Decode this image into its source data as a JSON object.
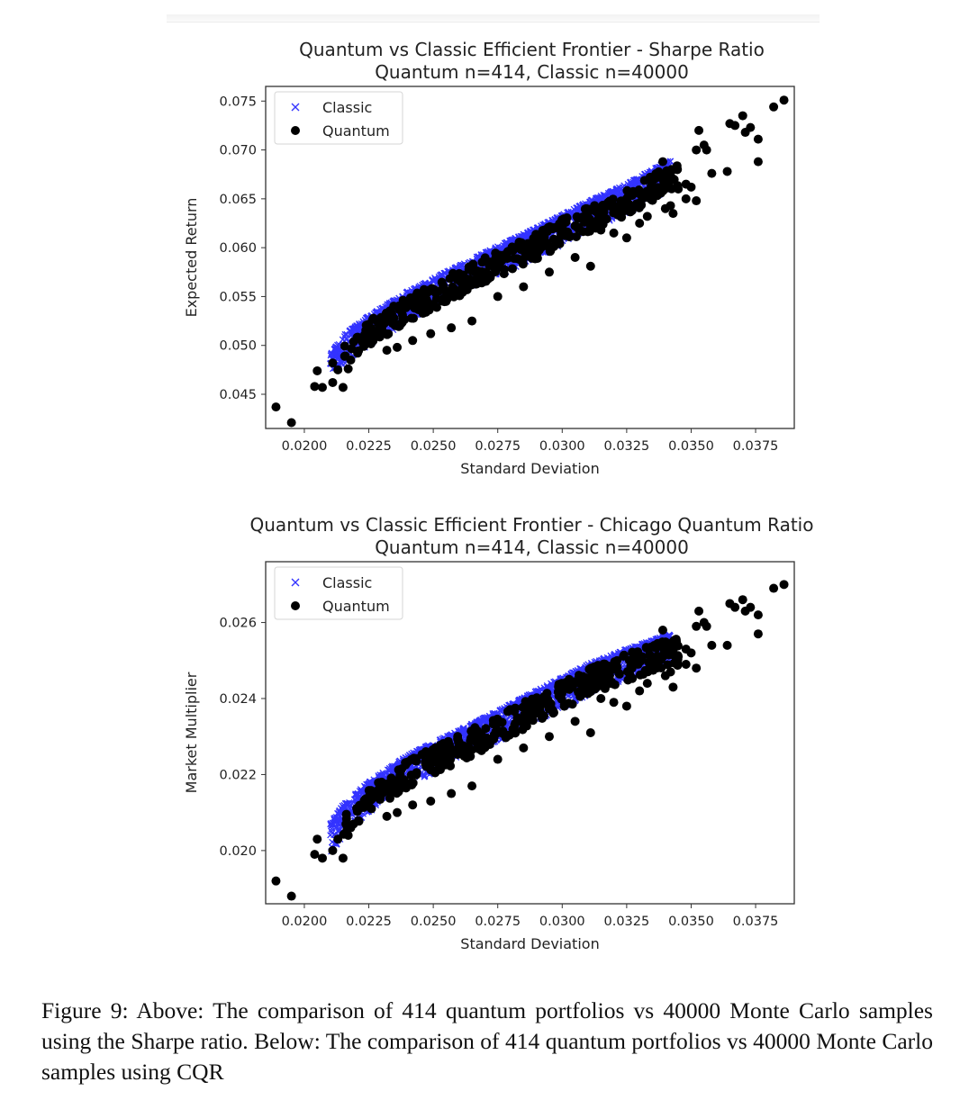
{
  "chart_data": [
    {
      "type": "scatter",
      "title": "Quantum vs Classic Efficient Frontier - Sharpe Ratio",
      "subtitle": "Quantum n=414, Classic n=40000",
      "xlabel": "Standard Deviation",
      "ylabel": "Expected Return",
      "xlim": [
        0.0185,
        0.039
      ],
      "ylim": [
        0.0415,
        0.0765
      ],
      "xticks": [
        "0.0200",
        "0.0225",
        "0.0250",
        "0.0275",
        "0.0300",
        "0.0325",
        "0.0350",
        "0.0375"
      ],
      "yticks": [
        "0.045",
        "0.050",
        "0.055",
        "0.060",
        "0.065",
        "0.070",
        "0.075"
      ],
      "grid": false,
      "legend_position": "upper-left",
      "series": [
        {
          "name": "Classic",
          "marker": "x",
          "color": "#3333ff",
          "frontier": [
            [
              0.021,
              0.049
            ],
            [
              0.0215,
              0.051
            ],
            [
              0.0225,
              0.053
            ],
            [
              0.024,
              0.0555
            ],
            [
              0.0255,
              0.0575
            ],
            [
              0.027,
              0.0595
            ],
            [
              0.029,
              0.062
            ],
            [
              0.031,
              0.0647
            ],
            [
              0.0325,
              0.0665
            ],
            [
              0.0342,
              0.069
            ]
          ],
          "spread": 0.003
        },
        {
          "name": "Quantum",
          "marker": "o",
          "color": "#000000",
          "points": [
            [
              0.0189,
              0.0437
            ],
            [
              0.0195,
              0.0421
            ],
            [
              0.0204,
              0.0458
            ],
            [
              0.0205,
              0.0474
            ],
            [
              0.0207,
              0.0457
            ],
            [
              0.0211,
              0.0462
            ],
            [
              0.0213,
              0.0475
            ],
            [
              0.0215,
              0.0457
            ],
            [
              0.0217,
              0.0476
            ],
            [
              0.0218,
              0.0485
            ],
            [
              0.0211,
              0.0482
            ],
            [
              0.0226,
              0.0503
            ],
            [
              0.0232,
              0.0495
            ],
            [
              0.0236,
              0.0498
            ],
            [
              0.0242,
              0.0505
            ],
            [
              0.0249,
              0.0512
            ],
            [
              0.0257,
              0.0518
            ],
            [
              0.0265,
              0.0525
            ],
            [
              0.0275,
              0.055
            ],
            [
              0.0285,
              0.056
            ],
            [
              0.0295,
              0.0575
            ],
            [
              0.0305,
              0.059
            ],
            [
              0.0311,
              0.0581
            ],
            [
              0.0315,
              0.0618
            ],
            [
              0.032,
              0.0615
            ],
            [
              0.0325,
              0.061
            ],
            [
              0.033,
              0.0625
            ],
            [
              0.0333,
              0.0632
            ],
            [
              0.0336,
              0.0655
            ],
            [
              0.034,
              0.064
            ],
            [
              0.0342,
              0.0643
            ],
            [
              0.0345,
              0.066
            ],
            [
              0.0348,
              0.065
            ],
            [
              0.035,
              0.0662
            ],
            [
              0.0352,
              0.07
            ],
            [
              0.0353,
              0.072
            ],
            [
              0.0355,
              0.0705
            ],
            [
              0.0356,
              0.07
            ],
            [
              0.0358,
              0.0676
            ],
            [
              0.0364,
              0.0678
            ],
            [
              0.0365,
              0.0727
            ],
            [
              0.0367,
              0.0725
            ],
            [
              0.037,
              0.0735
            ],
            [
              0.0371,
              0.0718
            ],
            [
              0.0373,
              0.0723
            ],
            [
              0.0376,
              0.0711
            ],
            [
              0.0376,
              0.0688
            ],
            [
              0.0382,
              0.0744
            ],
            [
              0.0386,
              0.0751
            ],
            [
              0.0348,
              0.0665
            ],
            [
              0.0343,
              0.0635
            ],
            [
              0.0352,
              0.0648
            ],
            [
              0.0339,
              0.0688
            ]
          ],
          "cloud_count": 414
        }
      ]
    },
    {
      "type": "scatter",
      "title": "Quantum vs Classic Efficient Frontier - Chicago Quantum Ratio",
      "subtitle": "Quantum n=414, Classic n=40000",
      "xlabel": "Standard Deviation",
      "ylabel": "Market Multiplier",
      "xlim": [
        0.0185,
        0.039
      ],
      "ylim": [
        0.0186,
        0.0276
      ],
      "xticks": [
        "0.0200",
        "0.0225",
        "0.0250",
        "0.0275",
        "0.0300",
        "0.0325",
        "0.0350",
        "0.0375"
      ],
      "yticks": [
        "0.020",
        "0.022",
        "0.024",
        "0.026"
      ],
      "grid": false,
      "legend_position": "upper-left",
      "series": [
        {
          "name": "Classic",
          "marker": "x",
          "color": "#3333ff",
          "frontier": [
            [
              0.021,
              0.0207
            ],
            [
              0.0215,
              0.0212
            ],
            [
              0.0225,
              0.0218
            ],
            [
              0.024,
              0.0225
            ],
            [
              0.0255,
              0.023
            ],
            [
              0.027,
              0.0235
            ],
            [
              0.029,
              0.0242
            ],
            [
              0.031,
              0.0249
            ],
            [
              0.0325,
              0.0253
            ],
            [
              0.0342,
              0.0257
            ]
          ],
          "spread": 0.0008
        },
        {
          "name": "Quantum",
          "marker": "o",
          "color": "#000000",
          "points": [
            [
              0.0189,
              0.0192
            ],
            [
              0.0195,
              0.0188
            ],
            [
              0.0204,
              0.0199
            ],
            [
              0.0205,
              0.0203
            ],
            [
              0.0207,
              0.0198
            ],
            [
              0.0211,
              0.02
            ],
            [
              0.0213,
              0.0203
            ],
            [
              0.0215,
              0.0198
            ],
            [
              0.0217,
              0.0204
            ],
            [
              0.0218,
              0.0206
            ],
            [
              0.0226,
              0.0211
            ],
            [
              0.0232,
              0.0209
            ],
            [
              0.0236,
              0.021
            ],
            [
              0.0242,
              0.0212
            ],
            [
              0.0249,
              0.0213
            ],
            [
              0.0257,
              0.0215
            ],
            [
              0.0265,
              0.0217
            ],
            [
              0.0275,
              0.0224
            ],
            [
              0.0285,
              0.0227
            ],
            [
              0.0295,
              0.023
            ],
            [
              0.0305,
              0.0234
            ],
            [
              0.0311,
              0.0231
            ],
            [
              0.0315,
              0.024
            ],
            [
              0.032,
              0.0239
            ],
            [
              0.0325,
              0.0238
            ],
            [
              0.033,
              0.0242
            ],
            [
              0.0333,
              0.0244
            ],
            [
              0.0336,
              0.025
            ],
            [
              0.034,
              0.0246
            ],
            [
              0.0342,
              0.0247
            ],
            [
              0.0345,
              0.0251
            ],
            [
              0.0348,
              0.0249
            ],
            [
              0.035,
              0.0252
            ],
            [
              0.0352,
              0.0259
            ],
            [
              0.0353,
              0.0263
            ],
            [
              0.0355,
              0.026
            ],
            [
              0.0356,
              0.0259
            ],
            [
              0.0358,
              0.0254
            ],
            [
              0.0364,
              0.0254
            ],
            [
              0.0365,
              0.0265
            ],
            [
              0.0367,
              0.0264
            ],
            [
              0.037,
              0.0266
            ],
            [
              0.0371,
              0.0263
            ],
            [
              0.0373,
              0.0264
            ],
            [
              0.0376,
              0.0262
            ],
            [
              0.0376,
              0.0257
            ],
            [
              0.0382,
              0.0269
            ],
            [
              0.0386,
              0.027
            ],
            [
              0.0348,
              0.0253
            ],
            [
              0.0343,
              0.0243
            ],
            [
              0.0352,
              0.0248
            ],
            [
              0.0339,
              0.0258
            ]
          ],
          "cloud_count": 414
        }
      ]
    }
  ],
  "caption": "Figure 9: Above: The comparison of 414 quantum portfolios vs 40000 Monte Carlo samples using the Sharpe ratio. Below: The comparison of 414 quantum portfolios vs 40000 Monte Carlo samples using CQR"
}
